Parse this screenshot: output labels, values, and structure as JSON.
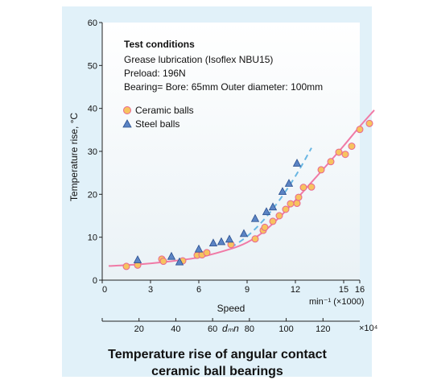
{
  "chart_data": {
    "type": "scatter",
    "caption_line1": "Temperature rise of angular contact",
    "caption_line2": "ceramic ball bearings",
    "ylabel": "Temperature rise, °C",
    "xlabel": "Speed",
    "x_unit": "min⁻¹ (×1000)",
    "secondary_xlabel": "dₘn",
    "secondary_x_unit": "×10⁴",
    "xlim": [
      0,
      16
    ],
    "ylim": [
      0,
      60
    ],
    "x_ticks": [
      0,
      3,
      6,
      9,
      12,
      15
    ],
    "x_tick_labels": [
      "0",
      "3",
      "6",
      "9",
      "12",
      "15"
    ],
    "x_axis_end_label": "16",
    "y_ticks": [
      0,
      10,
      20,
      30,
      40,
      50,
      60
    ],
    "secondary_ticks": [
      20,
      40,
      60,
      80,
      100,
      120
    ],
    "secondary_xlim": [
      0,
      140
    ],
    "conditions": {
      "heading": "Test conditions",
      "lines": [
        "Grease lubrication (Isoflex NBU15)",
        "Preload: 196N",
        "Bearing= Bore: 65mm Outer diameter: 100mm"
      ]
    },
    "series": [
      {
        "name": "Ceramic balls",
        "marker": "circle",
        "color": "#f7c35f",
        "edge": "#e8668f",
        "points": [
          [
            1.5,
            3.2
          ],
          [
            2.2,
            3.5
          ],
          [
            3.7,
            4.9
          ],
          [
            3.8,
            4.4
          ],
          [
            5.0,
            4.5
          ],
          [
            5.9,
            5.8
          ],
          [
            6.2,
            5.9
          ],
          [
            6.5,
            6.4
          ],
          [
            8.0,
            8.3
          ],
          [
            9.5,
            9.6
          ],
          [
            10.0,
            11.6
          ],
          [
            10.1,
            12.3
          ],
          [
            10.6,
            13.7
          ],
          [
            11.0,
            15.0
          ],
          [
            11.4,
            16.5
          ],
          [
            11.7,
            17.8
          ],
          [
            12.1,
            17.9
          ],
          [
            12.2,
            19.3
          ],
          [
            12.5,
            21.6
          ],
          [
            13.0,
            21.7
          ],
          [
            13.6,
            25.7
          ],
          [
            14.2,
            27.6
          ],
          [
            14.7,
            29.8
          ],
          [
            15.1,
            29.3
          ],
          [
            15.5,
            31.2
          ],
          [
            16.0,
            35.1
          ],
          [
            16.6,
            36.5
          ]
        ]
      },
      {
        "name": "Steel balls",
        "marker": "triangle",
        "color": "#5b84c4",
        "edge": "#2a4f8f",
        "points": [
          [
            2.2,
            4.7
          ],
          [
            4.3,
            5.5
          ],
          [
            4.8,
            4.2
          ],
          [
            6.0,
            7.2
          ],
          [
            6.9,
            8.6
          ],
          [
            7.4,
            8.9
          ],
          [
            7.9,
            9.5
          ],
          [
            8.8,
            10.8
          ],
          [
            9.5,
            14.3
          ],
          [
            10.2,
            15.9
          ],
          [
            10.6,
            17.0
          ],
          [
            11.2,
            20.6
          ],
          [
            11.6,
            22.5
          ],
          [
            12.1,
            27.2
          ]
        ]
      }
    ],
    "fit_curves": [
      {
        "for": "Ceramic balls",
        "style": "solid",
        "color": "#f07aa6",
        "points": [
          [
            0.4,
            3.3
          ],
          [
            2,
            3.6
          ],
          [
            4,
            4.3
          ],
          [
            6,
            5.3
          ],
          [
            8,
            7.3
          ],
          [
            9,
            8.8
          ],
          [
            10,
            11.2
          ],
          [
            11,
            14.6
          ],
          [
            12,
            18.6
          ],
          [
            13,
            22.8
          ],
          [
            14,
            27.0
          ],
          [
            15,
            31.3
          ],
          [
            16,
            35.8
          ],
          [
            16.9,
            39.6
          ]
        ]
      },
      {
        "for": "Steel balls",
        "style": "dashed",
        "color": "#6ab7e3",
        "points": [
          [
            8.0,
            7.6
          ],
          [
            9,
            10.2
          ],
          [
            10,
            13.9
          ],
          [
            11,
            18.6
          ],
          [
            12,
            24.2
          ],
          [
            13.0,
            30.8
          ]
        ]
      }
    ]
  }
}
